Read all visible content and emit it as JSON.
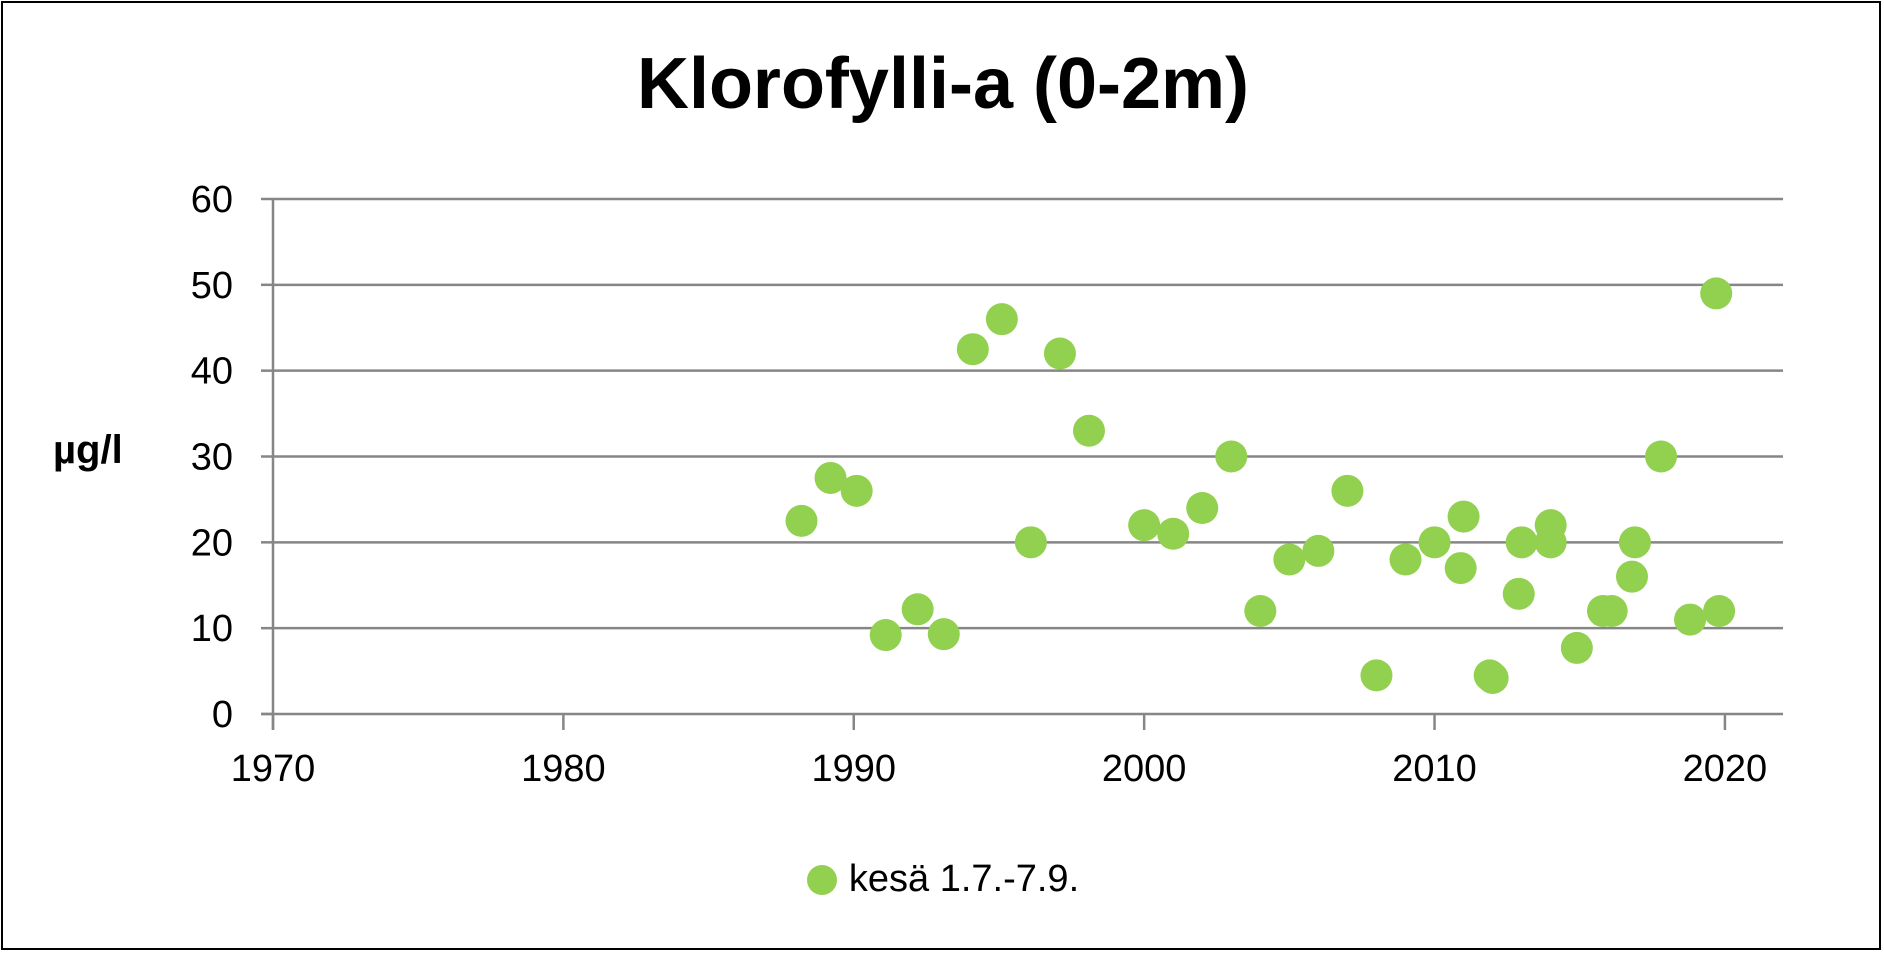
{
  "chart_data": {
    "type": "scatter",
    "title": "Klorofylli-a (0-2m)",
    "xlabel": "",
    "ylabel": "µg/l",
    "xlim": [
      1970,
      2022
    ],
    "ylim": [
      0,
      60
    ],
    "x_ticks": [
      1970,
      1980,
      1990,
      2000,
      2010,
      2020
    ],
    "y_ticks": [
      0,
      10,
      20,
      30,
      40,
      50,
      60
    ],
    "grid": true,
    "legend_position": "bottom",
    "series": [
      {
        "name": "kesä 1.7.-7.9.",
        "color": "#92d050",
        "points": [
          {
            "x": 1988.2,
            "y": 22.5
          },
          {
            "x": 1989.2,
            "y": 27.5
          },
          {
            "x": 1990.1,
            "y": 26
          },
          {
            "x": 1991.1,
            "y": 9.2
          },
          {
            "x": 1992.2,
            "y": 12.2
          },
          {
            "x": 1993.1,
            "y": 9.3
          },
          {
            "x": 1994.1,
            "y": 42.5
          },
          {
            "x": 1995.1,
            "y": 46
          },
          {
            "x": 1996.1,
            "y": 20
          },
          {
            "x": 1997.1,
            "y": 42
          },
          {
            "x": 1998.1,
            "y": 33
          },
          {
            "x": 2000,
            "y": 22
          },
          {
            "x": 2001,
            "y": 21
          },
          {
            "x": 2002,
            "y": 24
          },
          {
            "x": 2003,
            "y": 30
          },
          {
            "x": 2004,
            "y": 12
          },
          {
            "x": 2005,
            "y": 18
          },
          {
            "x": 2006,
            "y": 19
          },
          {
            "x": 2007,
            "y": 26
          },
          {
            "x": 2008,
            "y": 4.5
          },
          {
            "x": 2009,
            "y": 18
          },
          {
            "x": 2010,
            "y": 20
          },
          {
            "x": 2010.9,
            "y": 17
          },
          {
            "x": 2011,
            "y": 23
          },
          {
            "x": 2011.9,
            "y": 4.5
          },
          {
            "x": 2012,
            "y": 4.2
          },
          {
            "x": 2012.9,
            "y": 14
          },
          {
            "x": 2013,
            "y": 20
          },
          {
            "x": 2014,
            "y": 22
          },
          {
            "x": 2014,
            "y": 20
          },
          {
            "x": 2014.9,
            "y": 7.7
          },
          {
            "x": 2015.8,
            "y": 12
          },
          {
            "x": 2016.1,
            "y": 12
          },
          {
            "x": 2016.8,
            "y": 16
          },
          {
            "x": 2016.9,
            "y": 20
          },
          {
            "x": 2017.8,
            "y": 30
          },
          {
            "x": 2018.8,
            "y": 11
          },
          {
            "x": 2019.7,
            "y": 49
          },
          {
            "x": 2019.8,
            "y": 12
          }
        ]
      }
    ]
  }
}
